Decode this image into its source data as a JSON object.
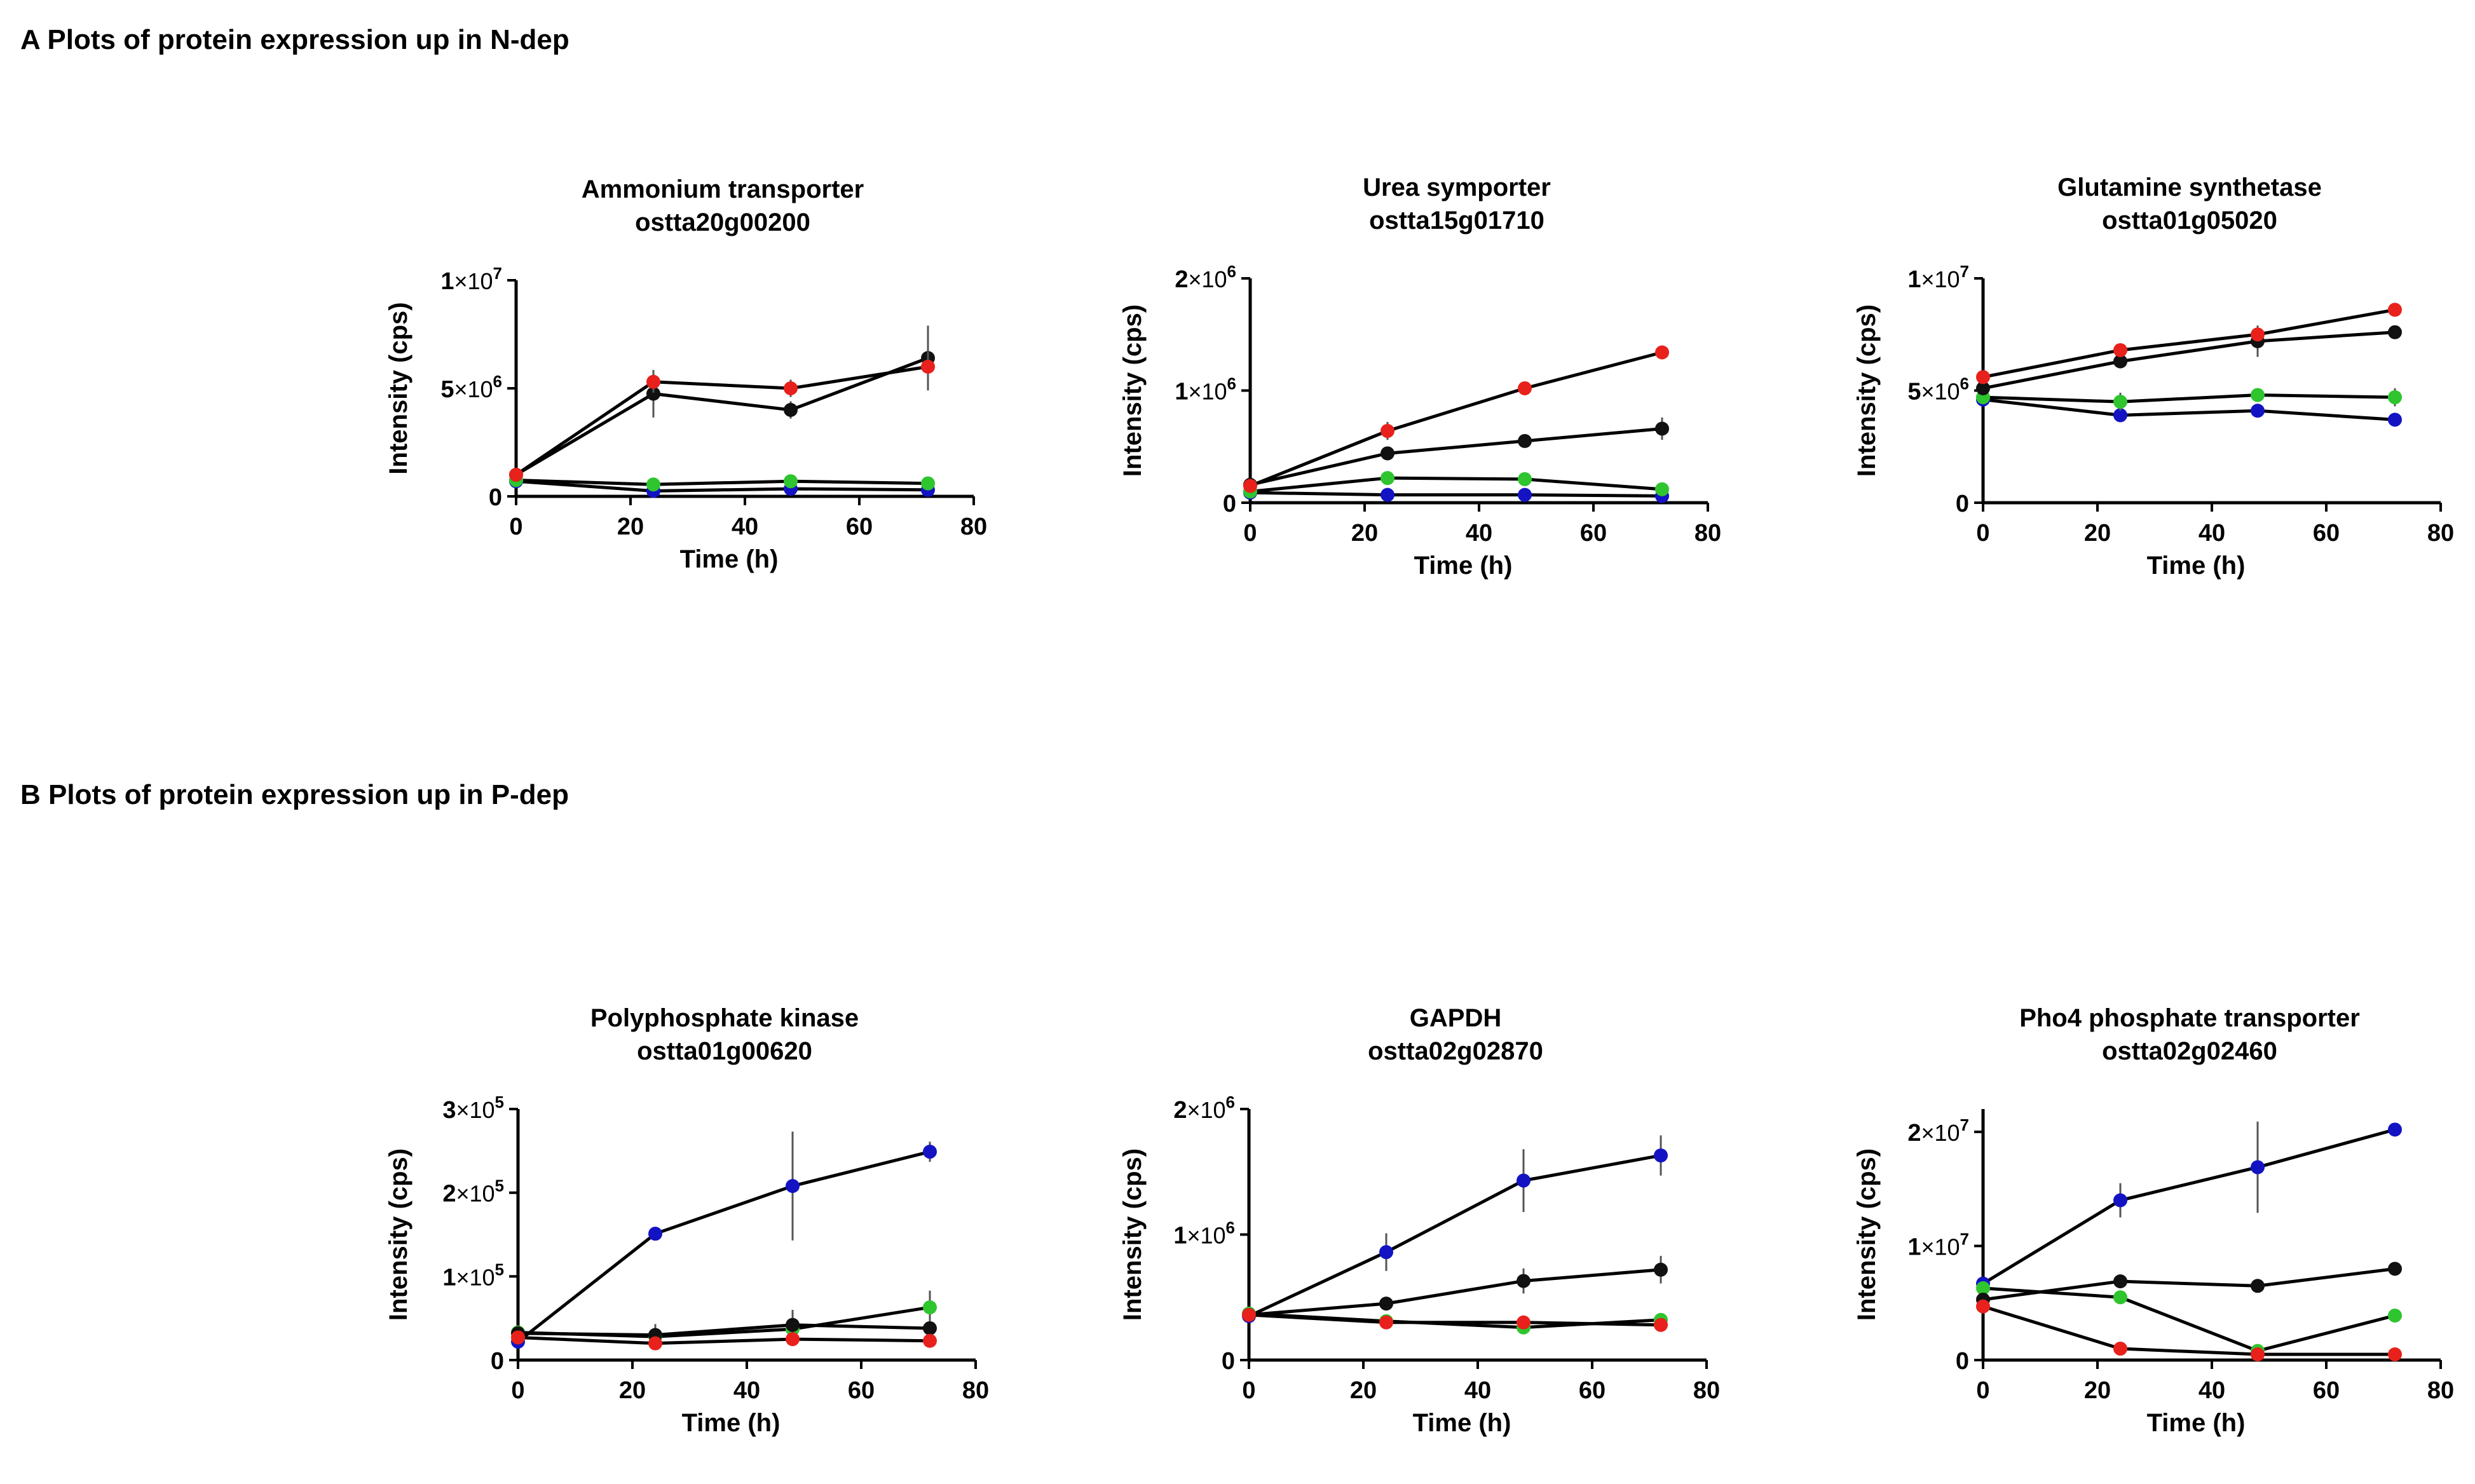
{
  "sections": {
    "a_title": "A Plots of protein expression up in N-dep",
    "b_title": "B Plots of protein expression up in P-dep"
  },
  "series_colors": {
    "red": "#e8211c",
    "black": "#111111",
    "green": "#2ec52e",
    "blue": "#1313c4"
  },
  "chart_data": [
    {
      "type": "line",
      "title": "Ammonium transporter",
      "subtitle": "ostta20g00200",
      "xlabel": "Time (h)",
      "ylabel": "Intensity (cps)",
      "xlim": [
        0,
        80
      ],
      "ylim": [
        0,
        10000000
      ],
      "xticks": [
        0,
        20,
        40,
        60,
        80
      ],
      "yticks": [
        {
          "value": 0,
          "m": "0",
          "e": ""
        },
        {
          "value": 5000000,
          "m": "5",
          "e": "6"
        },
        {
          "value": 10000000,
          "m": "1",
          "e": "7"
        }
      ],
      "x": [
        0,
        24,
        48,
        72
      ],
      "series": [
        {
          "name": "red",
          "values": [
            1000000,
            5300000,
            5000000,
            6000000
          ],
          "err": [
            100000,
            500000,
            400000,
            700000
          ]
        },
        {
          "name": "black",
          "values": [
            1000000,
            4750000,
            4000000,
            6400000
          ],
          "err": [
            100000,
            1100000,
            400000,
            1500000
          ]
        },
        {
          "name": "green",
          "values": [
            750000,
            550000,
            700000,
            600000
          ],
          "err": [
            50000,
            80000,
            80000,
            80000
          ]
        },
        {
          "name": "blue",
          "values": [
            700000,
            250000,
            350000,
            300000
          ],
          "err": [
            50000,
            50000,
            50000,
            50000
          ]
        }
      ]
    },
    {
      "type": "line",
      "title": "Urea symporter",
      "subtitle": "ostta15g01710",
      "xlabel": "Time (h)",
      "ylabel": "Intensity (cps)",
      "xlim": [
        0,
        80
      ],
      "ylim": [
        0,
        2000000
      ],
      "xticks": [
        0,
        20,
        40,
        60,
        80
      ],
      "yticks": [
        {
          "value": 0,
          "m": "0",
          "e": ""
        },
        {
          "value": 1000000,
          "m": "1",
          "e": "6"
        },
        {
          "value": 2000000,
          "m": "2",
          "e": "6"
        }
      ],
      "x": [
        0,
        24,
        48,
        72
      ],
      "series": [
        {
          "name": "red",
          "values": [
            150000,
            640000,
            1020000,
            1340000
          ],
          "err": [
            20000,
            80000,
            30000,
            60000
          ]
        },
        {
          "name": "black",
          "values": [
            160000,
            440000,
            550000,
            660000
          ],
          "err": [
            20000,
            40000,
            30000,
            100000
          ]
        },
        {
          "name": "green",
          "values": [
            100000,
            220000,
            210000,
            120000
          ],
          "err": [
            20000,
            30000,
            20000,
            20000
          ]
        },
        {
          "name": "blue",
          "values": [
            90000,
            70000,
            70000,
            60000
          ],
          "err": [
            10000,
            10000,
            10000,
            10000
          ]
        }
      ]
    },
    {
      "type": "line",
      "title": "Glutamine synthetase",
      "subtitle": "ostta01g05020",
      "xlabel": "Time (h)",
      "ylabel": "Intensity (cps)",
      "xlim": [
        0,
        80
      ],
      "ylim": [
        0,
        10000000
      ],
      "xticks": [
        0,
        20,
        40,
        60,
        80
      ],
      "yticks": [
        {
          "value": 0,
          "m": "0",
          "e": ""
        },
        {
          "value": 5000000,
          "m": "5",
          "e": "6"
        },
        {
          "value": 10000000,
          "m": "1",
          "e": "7"
        }
      ],
      "x": [
        0,
        24,
        48,
        72
      ],
      "series": [
        {
          "name": "red",
          "values": [
            5600000,
            6800000,
            7500000,
            8600000
          ],
          "err": [
            150000,
            150000,
            300000,
            150000
          ]
        },
        {
          "name": "black",
          "values": [
            5100000,
            6300000,
            7200000,
            7600000
          ],
          "err": [
            150000,
            200000,
            700000,
            200000
          ]
        },
        {
          "name": "green",
          "values": [
            4700000,
            4500000,
            4800000,
            4700000
          ],
          "err": [
            200000,
            400000,
            200000,
            400000
          ]
        },
        {
          "name": "blue",
          "values": [
            4600000,
            3900000,
            4100000,
            3700000
          ],
          "err": [
            150000,
            150000,
            150000,
            150000
          ]
        }
      ]
    },
    {
      "type": "line",
      "title": "Polyphosphate kinase",
      "subtitle": "ostta01g00620",
      "xlabel": "Time (h)",
      "ylabel": "Intensity (cps)",
      "xlim": [
        0,
        80
      ],
      "ylim": [
        0,
        300000
      ],
      "xticks": [
        0,
        20,
        40,
        60,
        80
      ],
      "yticks": [
        {
          "value": 0,
          "m": "0",
          "e": ""
        },
        {
          "value": 100000,
          "m": "1",
          "e": "5"
        },
        {
          "value": 200000,
          "m": "2",
          "e": "5"
        },
        {
          "value": 300000,
          "m": "3",
          "e": "5"
        }
      ],
      "x": [
        0,
        24,
        48,
        72
      ],
      "series": [
        {
          "name": "red",
          "values": [
            27000,
            20000,
            25000,
            23000
          ],
          "err": [
            3000,
            3000,
            3000,
            3000
          ]
        },
        {
          "name": "black",
          "values": [
            32000,
            30000,
            42000,
            38000
          ],
          "err": [
            3000,
            5000,
            18000,
            5000
          ]
        },
        {
          "name": "green",
          "values": [
            33000,
            28000,
            37000,
            63000
          ],
          "err": [
            3000,
            15000,
            5000,
            20000
          ]
        },
        {
          "name": "blue",
          "values": [
            22000,
            151000,
            208000,
            249000
          ],
          "err": [
            5000,
            8000,
            65000,
            12000
          ]
        }
      ]
    },
    {
      "type": "line",
      "title": "GAPDH",
      "subtitle": "ostta02g02870",
      "xlabel": "Time (h)",
      "ylabel": "Intensity (cps)",
      "xlim": [
        0,
        80
      ],
      "ylim": [
        0,
        2000000
      ],
      "xticks": [
        0,
        20,
        40,
        60,
        80
      ],
      "yticks": [
        {
          "value": 0,
          "m": "0",
          "e": ""
        },
        {
          "value": 1000000,
          "m": "1",
          "e": "6"
        },
        {
          "value": 2000000,
          "m": "2",
          "e": "6"
        }
      ],
      "x": [
        0,
        24,
        48,
        72
      ],
      "series": [
        {
          "name": "red",
          "values": [
            360000,
            300000,
            300000,
            280000
          ],
          "err": [
            20000,
            20000,
            20000,
            20000
          ]
        },
        {
          "name": "black",
          "values": [
            360000,
            450000,
            630000,
            720000
          ],
          "err": [
            20000,
            30000,
            100000,
            110000
          ]
        },
        {
          "name": "green",
          "values": [
            370000,
            310000,
            260000,
            320000
          ],
          "err": [
            20000,
            20000,
            20000,
            20000
          ]
        },
        {
          "name": "blue",
          "values": [
            350000,
            860000,
            1430000,
            1630000
          ],
          "err": [
            20000,
            150000,
            250000,
            160000
          ]
        }
      ]
    },
    {
      "type": "line",
      "title": "Pho4 phosphate transporter",
      "subtitle": "ostta02g02460",
      "xlabel": "Time (h)",
      "ylabel": "Intensity (cps)",
      "xlim": [
        0,
        80
      ],
      "ylim": [
        0,
        22000000
      ],
      "xticks": [
        0,
        20,
        40,
        60,
        80
      ],
      "yticks": [
        {
          "value": 0,
          "m": "0",
          "e": ""
        },
        {
          "value": 10000000,
          "m": "1",
          "e": "7"
        },
        {
          "value": 20000000,
          "m": "2",
          "e": "7"
        }
      ],
      "x": [
        0,
        24,
        48,
        72
      ],
      "series": [
        {
          "name": "red",
          "values": [
            4700000,
            1000000,
            500000,
            500000
          ],
          "err": [
            200000,
            100000,
            100000,
            100000
          ]
        },
        {
          "name": "black",
          "values": [
            5300000,
            6900000,
            6500000,
            8000000
          ],
          "err": [
            300000,
            500000,
            300000,
            300000
          ]
        },
        {
          "name": "green",
          "values": [
            6300000,
            5500000,
            800000,
            3900000
          ],
          "err": [
            300000,
            300000,
            100000,
            200000
          ]
        },
        {
          "name": "blue",
          "values": [
            6700000,
            14000000,
            16900000,
            20200000
          ],
          "err": [
            300000,
            1500000,
            4000000,
            300000
          ]
        }
      ]
    }
  ]
}
